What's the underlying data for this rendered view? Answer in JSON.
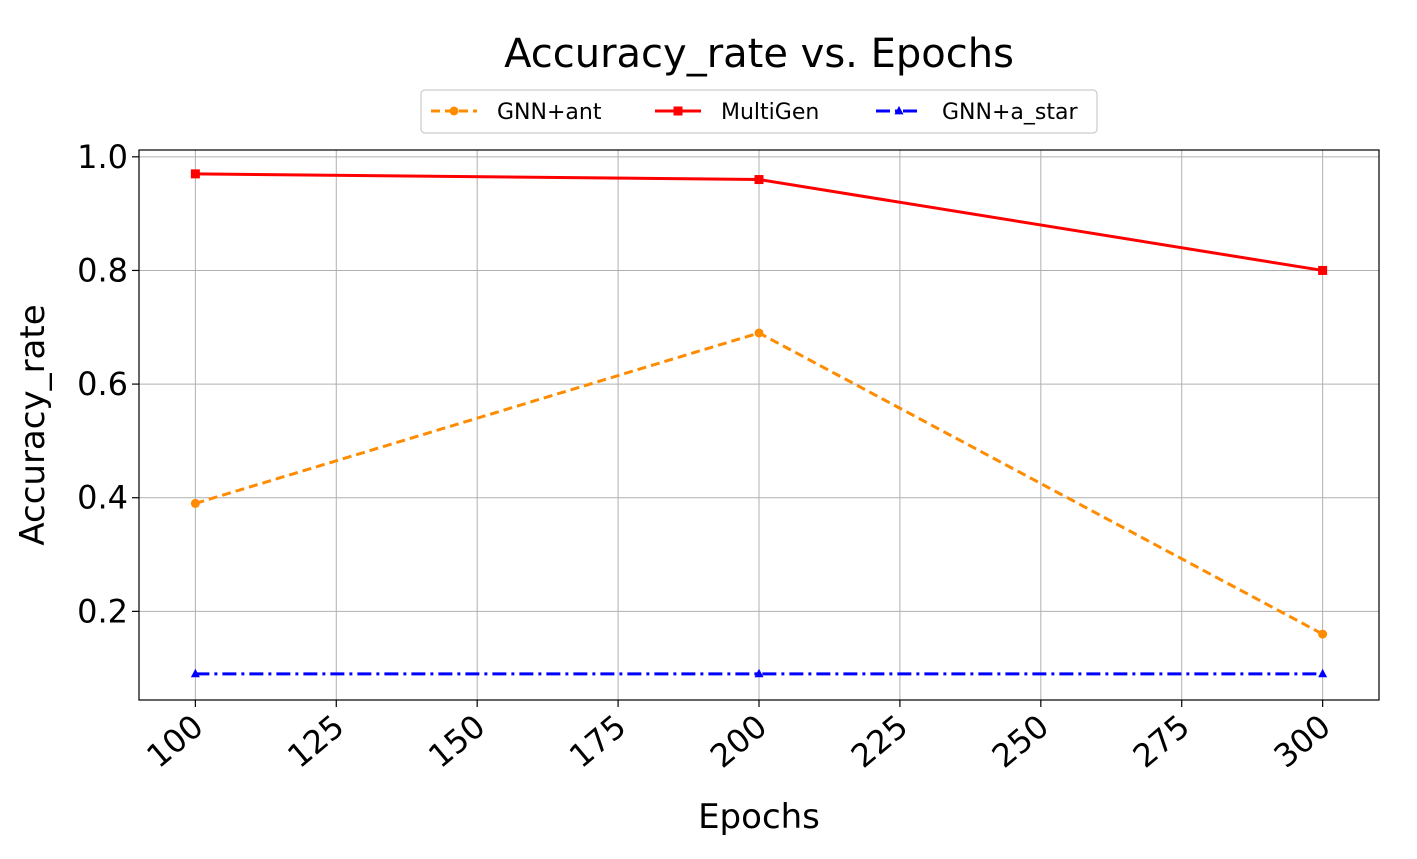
{
  "chart_data": {
    "type": "line",
    "title": "Accuracy_rate vs. Epochs",
    "xlabel": "Epochs",
    "ylabel": "Accuracy_rate",
    "x": [
      100,
      200,
      300
    ],
    "xlim": [
      90,
      310
    ],
    "ylim": [
      0.044,
      1.012
    ],
    "xticks": [
      100,
      125,
      150,
      175,
      200,
      225,
      250,
      275,
      300
    ],
    "xtick_labels": [
      "100",
      "125",
      "150",
      "175",
      "200",
      "225",
      "250",
      "275",
      "300"
    ],
    "yticks": [
      0.2,
      0.4,
      0.6,
      0.8,
      1.0
    ],
    "ytick_labels": [
      "0.2",
      "0.4",
      "0.6",
      "0.8",
      "1.0"
    ],
    "grid": true,
    "legend_position": "top-center",
    "series": [
      {
        "name": "GNN+ant",
        "values": [
          0.39,
          0.69,
          0.16
        ],
        "color": "#ff8c00",
        "line_style": "dashed",
        "marker": "circle"
      },
      {
        "name": "MultiGen",
        "values": [
          0.97,
          0.96,
          0.8
        ],
        "color": "#ff0000",
        "line_style": "solid",
        "marker": "square"
      },
      {
        "name": "GNN+a_star",
        "values": [
          0.09,
          0.09,
          0.09
        ],
        "color": "#0000ff",
        "line_style": "dashdot",
        "marker": "triangle"
      }
    ]
  }
}
